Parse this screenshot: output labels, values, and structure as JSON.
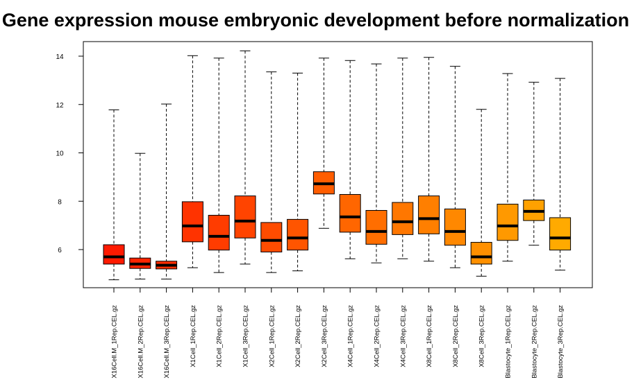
{
  "chart_data": {
    "type": "box",
    "title": "Gene expression mouse embryonic development before normalization",
    "xlabel": "",
    "ylabel": "",
    "ylim": [
      4.0,
      15.0
    ],
    "yticks": [
      6,
      8,
      10,
      12,
      14
    ],
    "grid": false,
    "legend": "none",
    "categories": [
      "X16Cell.M_1Rep.CEL.gz",
      "X16Cell.M_2Rep.CEL.gz",
      "X16Cell.M_3Rep.CEL.gz",
      "X1Cell_1Rep.CEL.gz",
      "X1Cell_2Rep.CEL.gz",
      "X1Cell_3Rep.CEL.gz",
      "X2Cell_1Rep.CEL.gz",
      "X2Cell_2Rep.CEL.gz",
      "X2Cell_3Rep.CEL.gz",
      "X4Cell_1Rep.CEL.gz",
      "X4Cell_2Rep.CEL.gz",
      "X4Cell_3Rep.CEL.gz",
      "X8Cell_1Rep.CEL.gz",
      "X8Cell_2Rep.CEL.gz",
      "X8Cell_3Rep.CEL.gz",
      "Blastocyte_1Rep.CEL.gz",
      "Blastocyte_2Rep.CEL.gz",
      "Blastocyte_3Rep.CEL.gz"
    ],
    "boxes": [
      {
        "min": 4.75,
        "q1": 5.4,
        "median": 5.7,
        "q3": 6.2,
        "max": 11.78,
        "color": "#FF1A00"
      },
      {
        "min": 4.78,
        "q1": 5.22,
        "median": 5.4,
        "q3": 5.65,
        "max": 9.98,
        "color": "#FF2400"
      },
      {
        "min": 4.78,
        "q1": 5.2,
        "median": 5.35,
        "q3": 5.52,
        "max": 12.02,
        "color": "#FF2D00"
      },
      {
        "min": 5.25,
        "q1": 6.32,
        "median": 6.98,
        "q3": 7.98,
        "max": 14.02,
        "color": "#FF3300"
      },
      {
        "min": 5.05,
        "q1": 5.98,
        "median": 6.55,
        "q3": 7.42,
        "max": 13.92,
        "color": "#FF3C00"
      },
      {
        "min": 5.4,
        "q1": 6.48,
        "median": 7.18,
        "q3": 8.22,
        "max": 14.22,
        "color": "#FF4400"
      },
      {
        "min": 5.05,
        "q1": 5.9,
        "median": 6.38,
        "q3": 7.12,
        "max": 13.35,
        "color": "#FF4C00"
      },
      {
        "min": 5.12,
        "q1": 5.98,
        "median": 6.48,
        "q3": 7.25,
        "max": 13.3,
        "color": "#FF5500"
      },
      {
        "min": 6.88,
        "q1": 8.3,
        "median": 8.72,
        "q3": 9.22,
        "max": 13.92,
        "color": "#FF5D00"
      },
      {
        "min": 5.62,
        "q1": 6.72,
        "median": 7.35,
        "q3": 8.28,
        "max": 13.82,
        "color": "#FF6600"
      },
      {
        "min": 5.45,
        "q1": 6.22,
        "median": 6.75,
        "q3": 7.62,
        "max": 13.68,
        "color": "#FF6E00"
      },
      {
        "min": 5.62,
        "q1": 6.62,
        "median": 7.15,
        "q3": 7.95,
        "max": 13.92,
        "color": "#FF7700"
      },
      {
        "min": 5.52,
        "q1": 6.65,
        "median": 7.28,
        "q3": 8.22,
        "max": 13.95,
        "color": "#FF7F00"
      },
      {
        "min": 5.25,
        "q1": 6.18,
        "median": 6.75,
        "q3": 7.68,
        "max": 13.58,
        "color": "#FF8800"
      },
      {
        "min": 4.9,
        "q1": 5.4,
        "median": 5.7,
        "q3": 6.3,
        "max": 11.8,
        "color": "#FF9000"
      },
      {
        "min": 5.52,
        "q1": 6.38,
        "median": 6.98,
        "q3": 7.88,
        "max": 13.28,
        "color": "#FF9900"
      },
      {
        "min": 6.18,
        "q1": 7.2,
        "median": 7.58,
        "q3": 8.05,
        "max": 12.92,
        "color": "#FFA100"
      },
      {
        "min": 5.15,
        "q1": 5.98,
        "median": 6.48,
        "q3": 7.32,
        "max": 13.08,
        "color": "#FFAA00"
      }
    ]
  }
}
